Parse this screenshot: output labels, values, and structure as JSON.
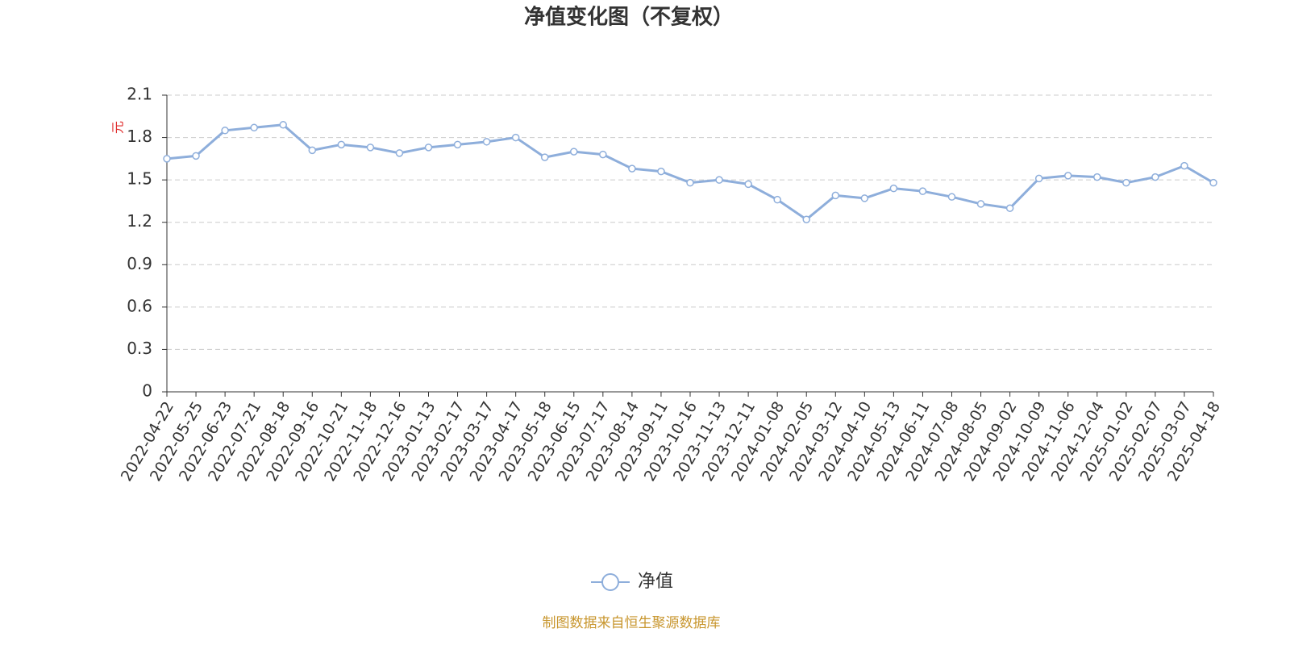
{
  "chart_data": {
    "type": "line",
    "title": "净值变化图（不复权）",
    "y_label": "元",
    "source": "制图数据来自恒生聚源数据库",
    "categories": [
      "2022-04-22",
      "2022-05-25",
      "2022-06-23",
      "2022-07-21",
      "2022-08-18",
      "2022-09-16",
      "2022-10-21",
      "2022-11-18",
      "2022-12-16",
      "2023-01-13",
      "2023-02-17",
      "2023-03-17",
      "2023-04-17",
      "2023-05-18",
      "2023-06-15",
      "2023-07-17",
      "2023-08-14",
      "2023-09-11",
      "2023-10-16",
      "2023-11-13",
      "2023-12-11",
      "2024-01-08",
      "2024-02-05",
      "2024-03-12",
      "2024-04-10",
      "2024-05-13",
      "2024-06-11",
      "2024-07-08",
      "2024-08-05",
      "2024-09-02",
      "2024-10-09",
      "2024-11-06",
      "2024-12-04",
      "2025-01-02",
      "2025-02-07",
      "2025-03-07",
      "2025-04-18"
    ],
    "series": [
      {
        "name": "净值",
        "color": "#8eaedb",
        "values": [
          1.65,
          1.67,
          1.85,
          1.87,
          1.89,
          1.71,
          1.75,
          1.73,
          1.69,
          1.73,
          1.75,
          1.77,
          1.8,
          1.66,
          1.7,
          1.68,
          1.58,
          1.56,
          1.48,
          1.5,
          1.47,
          1.36,
          1.22,
          1.39,
          1.37,
          1.44,
          1.42,
          1.38,
          1.33,
          1.3,
          1.51,
          1.53,
          1.52,
          1.48,
          1.52,
          1.6,
          1.48
        ]
      }
    ],
    "ylim": [
      0,
      2.1
    ],
    "yticks": [
      0,
      0.3,
      0.6,
      0.9,
      1.2,
      1.5,
      1.8,
      2.1
    ],
    "grid": true,
    "legend": "bottom"
  }
}
